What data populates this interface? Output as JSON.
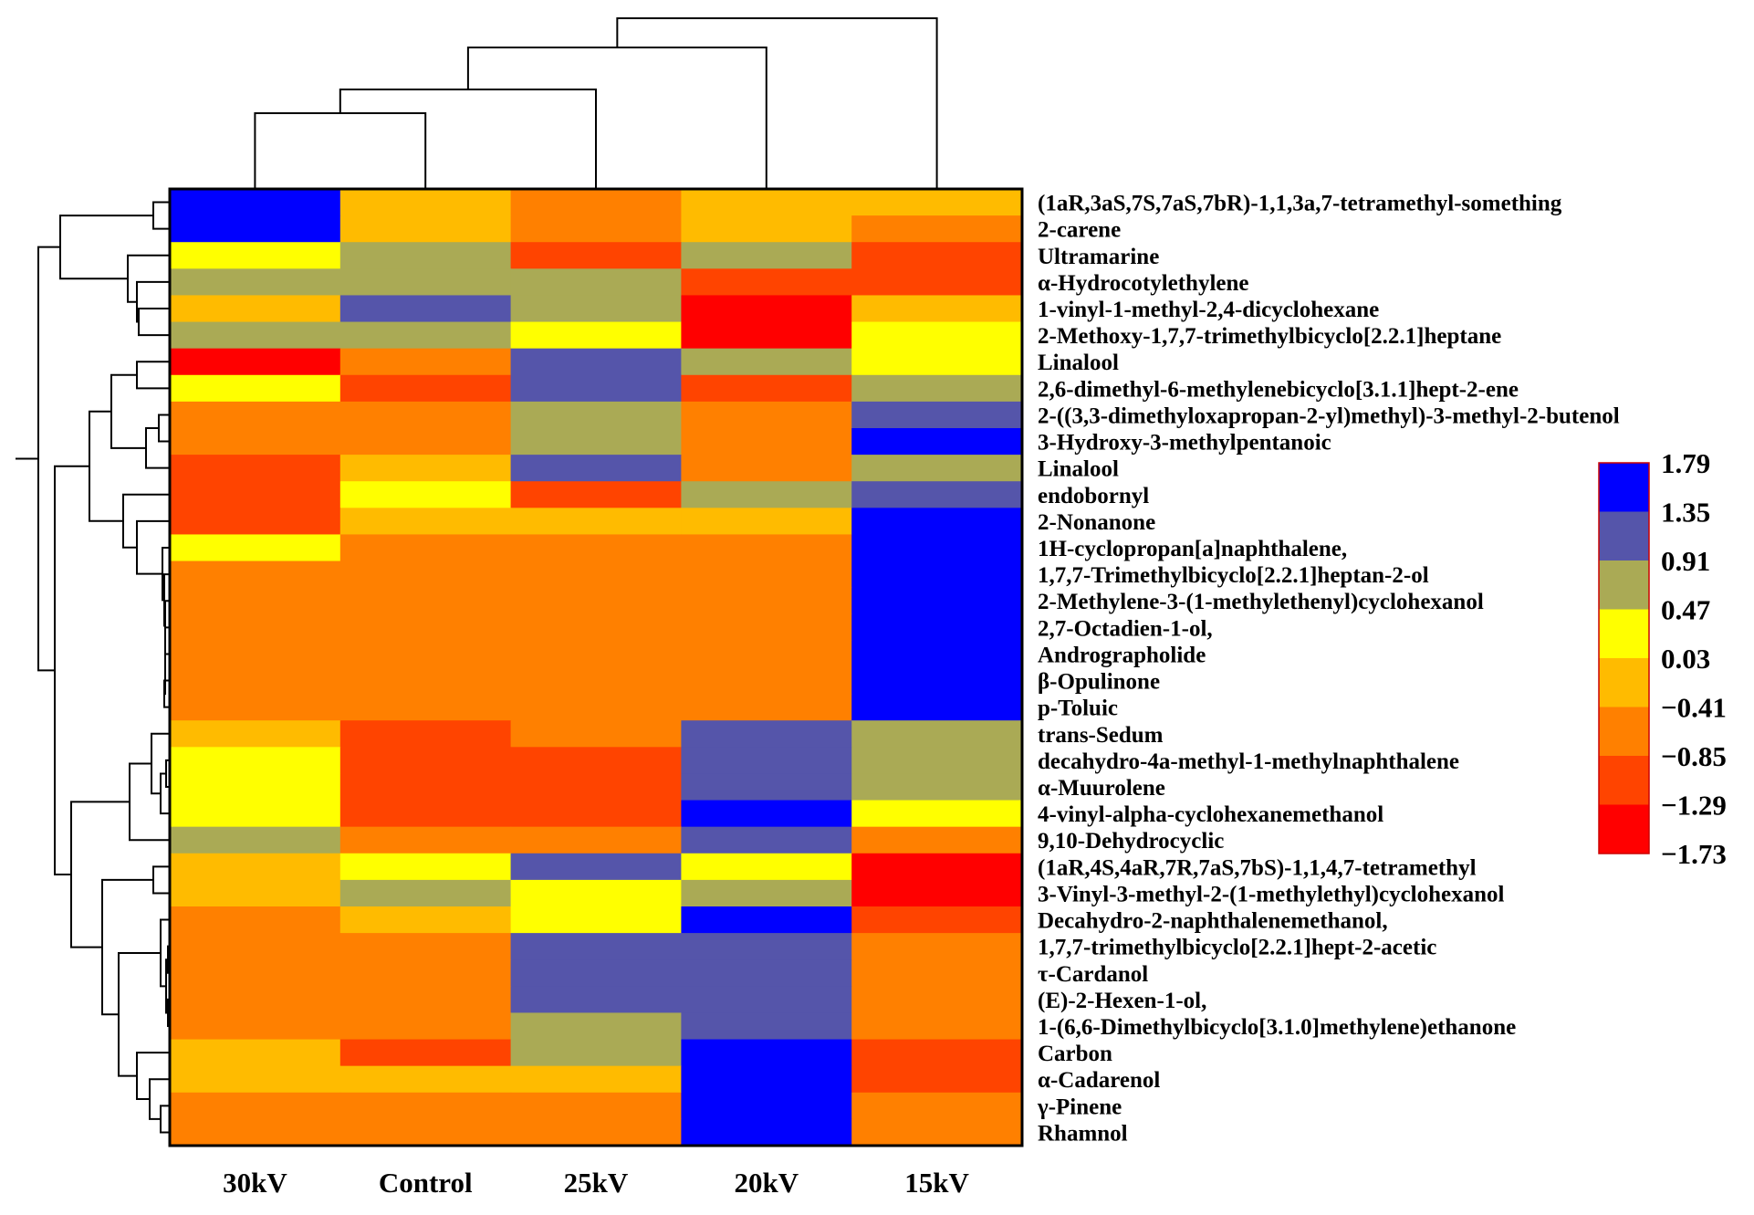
{
  "chart_data": {
    "type": "heatmap",
    "title": "",
    "columns": [
      "30kV",
      "Control",
      "25kV",
      "20kV",
      "15kV"
    ],
    "rows": [
      "(1aR,3aS,7S,7aS,7bR)-1,1,3a,7-tetramethyl-something",
      "2-carene",
      "Ultramarine",
      "α-Hydrocotylethylene",
      "1-vinyl-1-methyl-2,4-dicyclohexane",
      "2-Methoxy-1,7,7-trimethylbicyclo[2.2.1]heptane",
      "Linalool",
      "2,6-dimethyl-6-methylenebicyclo[3.1.1]hept-2-ene",
      "2-((3,3-dimethyloxapropan-2-yl)methyl)-3-methyl-2-butenol",
      "3-Hydroxy-3-methylpentanoic",
      "Linalool",
      "endobornyl",
      "2-Nonanone",
      "1H-cyclopropan[a]naphthalene,",
      "1,7,7-Trimethylbicyclo[2.2.1]heptan-2-ol",
      "2-Methylene-3-(1-methylethenyl)cyclohexanol",
      "2,7-Octadien-1-ol,",
      "Andrographolide",
      "β-Opulinone",
      "p-Toluic",
      "trans-Sedum",
      "decahydro-4a-methyl-1-methylnaphthalene",
      "α-Muurolene",
      "4-vinyl-alpha-cyclohexanemethanol",
      "9,10-Dehydrocyclic",
      "(1aR,4S,4aR,7R,7aS,7bS)-1,1,4,7-tetramethyl",
      "3-Vinyl-3-methyl-2-(1-methylethyl)cyclohexanol",
      "Decahydro-2-naphthalenemethanol,",
      "1,7,7-trimethylbicyclo[2.2.1]hept-2-acetic",
      "τ-Cardanol",
      "(E)-2-Hexen-1-ol,",
      "1-(6,6-Dimethylbicyclo[3.1.0]methylene)ethanone",
      "Carbon",
      "α-Cadarenol",
      "γ-Pinene",
      "Rhamnol"
    ],
    "values": [
      [
        1.79,
        0.03,
        -0.41,
        0.03,
        0.03
      ],
      [
        1.79,
        0.03,
        -0.41,
        0.03,
        -0.41
      ],
      [
        0.47,
        0.91,
        -0.85,
        0.91,
        -0.85
      ],
      [
        0.91,
        0.91,
        0.91,
        -0.85,
        -0.85
      ],
      [
        0.03,
        1.35,
        0.91,
        -1.29,
        0.03
      ],
      [
        0.91,
        0.91,
        0.47,
        -1.29,
        0.47
      ],
      [
        -1.29,
        -0.41,
        1.35,
        0.91,
        0.47
      ],
      [
        0.47,
        -0.85,
        1.35,
        -0.85,
        0.91
      ],
      [
        -0.41,
        -0.41,
        0.91,
        -0.41,
        1.35
      ],
      [
        -0.41,
        -0.41,
        0.91,
        -0.41,
        1.79
      ],
      [
        -0.85,
        0.03,
        1.35,
        -0.41,
        0.91
      ],
      [
        -0.85,
        0.47,
        -0.85,
        0.91,
        1.35
      ],
      [
        -0.85,
        0.03,
        0.03,
        0.03,
        1.79
      ],
      [
        0.47,
        -0.41,
        -0.41,
        -0.41,
        1.79
      ],
      [
        -0.41,
        -0.41,
        -0.41,
        -0.41,
        1.79
      ],
      [
        -0.41,
        -0.41,
        -0.41,
        -0.41,
        1.79
      ],
      [
        -0.41,
        -0.41,
        -0.41,
        -0.41,
        1.79
      ],
      [
        -0.41,
        -0.41,
        -0.41,
        -0.41,
        1.79
      ],
      [
        -0.41,
        -0.41,
        -0.41,
        -0.41,
        1.79
      ],
      [
        -0.41,
        -0.41,
        -0.41,
        -0.41,
        1.79
      ],
      [
        0.03,
        -0.85,
        -0.41,
        1.35,
        0.91
      ],
      [
        0.47,
        -0.85,
        -0.85,
        1.35,
        0.91
      ],
      [
        0.47,
        -0.85,
        -0.85,
        1.35,
        0.91
      ],
      [
        0.47,
        -0.85,
        -0.85,
        1.79,
        0.47
      ],
      [
        0.91,
        -0.41,
        -0.41,
        1.35,
        -0.41
      ],
      [
        0.03,
        0.47,
        1.35,
        0.47,
        -1.29
      ],
      [
        0.03,
        0.91,
        0.47,
        0.91,
        -1.29
      ],
      [
        -0.41,
        0.03,
        0.47,
        1.79,
        -0.85
      ],
      [
        -0.41,
        -0.41,
        1.35,
        1.35,
        -0.41
      ],
      [
        -0.41,
        -0.41,
        1.35,
        1.35,
        -0.41
      ],
      [
        -0.41,
        -0.41,
        1.35,
        1.35,
        -0.41
      ],
      [
        -0.41,
        -0.41,
        0.91,
        1.35,
        -0.41
      ],
      [
        0.03,
        -0.85,
        0.91,
        1.79,
        -0.85
      ],
      [
        0.03,
        0.03,
        0.03,
        1.79,
        -0.85
      ],
      [
        -0.41,
        -0.41,
        -0.41,
        1.79,
        -0.41
      ],
      [
        -0.41,
        -0.41,
        -0.41,
        1.79,
        -0.41
      ]
    ],
    "colorbar": {
      "ticks": [
        "1.79",
        "1.35",
        "0.91",
        "0.47",
        "0.03",
        "−0.41",
        "−0.85",
        "−1.29",
        "−1.73"
      ],
      "min": -1.73,
      "max": 1.79,
      "colors": [
        "#0000ff",
        "#5555aa",
        "#aaaa55",
        "#ffff00",
        "#ffbb00",
        "#ff8000",
        "#ff4400",
        "#ff0000"
      ]
    },
    "column_dendrogram": true,
    "row_dendrogram": true,
    "xlabel": "",
    "ylabel": ""
  }
}
